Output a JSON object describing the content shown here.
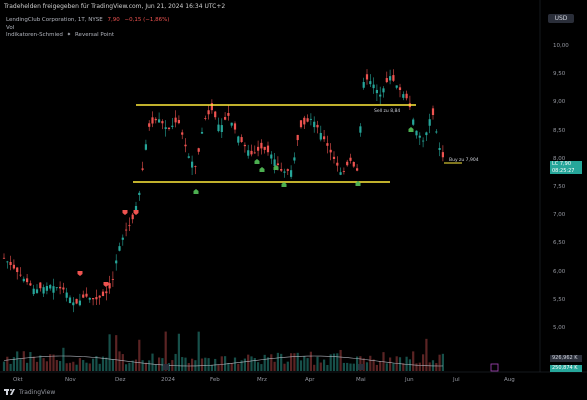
{
  "header": {
    "text": "Tradehelden freigegeben für TradingView.com, Jun 21, 2024 16:34 UTC+2"
  },
  "currency": "USD",
  "legend": {
    "symbol": "LendingClub Corporation, 1T, NYSE",
    "price": "7,90",
    "change": "−0,15 (−1,86%)",
    "vol_label": "Vol",
    "indicator": "Indikatoren-Schmied",
    "indicator_name": "Reversal Point"
  },
  "price_axis": [
    "10,00",
    "9,50",
    "9,00",
    "8,50",
    "8,00",
    "7,50",
    "7,00",
    "6,50",
    "6,00",
    "5,50",
    "5,00"
  ],
  "time_axis": [
    "Okt",
    "Nov",
    "Dez",
    "2024",
    "Feb",
    "Mrz",
    "Apr",
    "Mai",
    "Jun",
    "Jul",
    "Aug"
  ],
  "price_tag": {
    "symbol": "LC",
    "price": "7,90",
    "time": "08:25:27"
  },
  "volume_tags": [
    {
      "value": "926,962 K",
      "color": "#2a2e39"
    },
    {
      "value": "250,874 K",
      "color": "#26a69a"
    }
  ],
  "annotations": {
    "sell": "Sell zu 8,84",
    "buy": "Buy zu 7,904"
  },
  "footer": {
    "brand": "TradingView"
  },
  "colors": {
    "up": "#26a69a",
    "down": "#ef5350",
    "level": "#ffeb3b",
    "signal_buy": "#4caf50",
    "signal_sell": "#ef5350"
  }
}
